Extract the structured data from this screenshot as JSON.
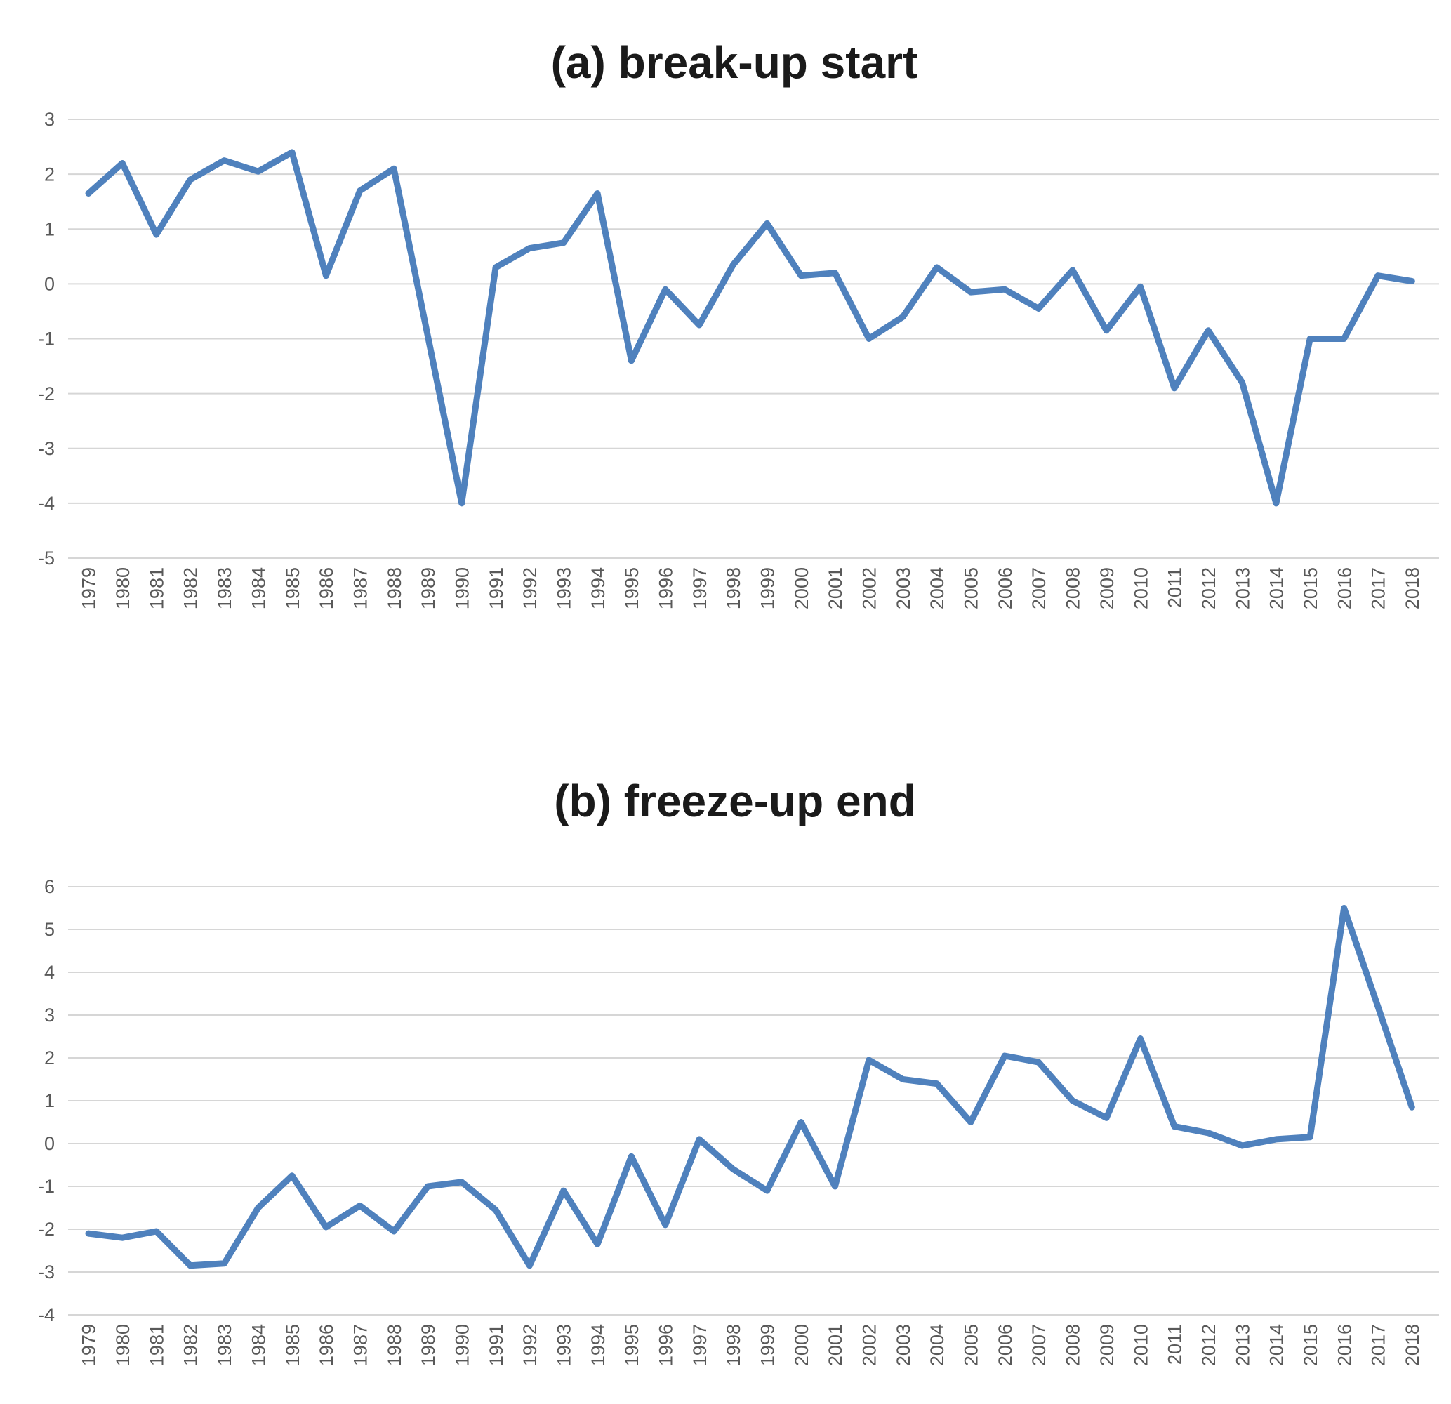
{
  "figure": {
    "background_color": "#ffffff",
    "title_color": "#1a1a1a",
    "tick_label_color": "#595959",
    "gridline_color": "#d6d6d6",
    "line_color": "#4f81bd"
  },
  "chart_data": [
    {
      "type": "line",
      "title": "(a) break-up start",
      "xlabel": "",
      "ylabel": "",
      "legend": "none",
      "grid": true,
      "ylim": [
        -5,
        3
      ],
      "yticks": [
        "3",
        "2",
        "1",
        "0",
        "-1",
        "-2",
        "-3",
        "-4",
        "-5"
      ],
      "categories": [
        "1979",
        "1980",
        "1981",
        "1982",
        "1983",
        "1984",
        "1985",
        "1986",
        "1987",
        "1988",
        "1989",
        "1990",
        "1991",
        "1992",
        "1993",
        "1994",
        "1995",
        "1996",
        "1997",
        "1998",
        "1999",
        "2000",
        "2001",
        "2002",
        "2003",
        "2004",
        "2005",
        "2006",
        "2007",
        "2008",
        "2009",
        "2010",
        "2011",
        "2012",
        "2013",
        "2014",
        "2015",
        "2016",
        "2017",
        "2018"
      ],
      "values": [
        1.65,
        2.2,
        0.9,
        1.9,
        2.25,
        2.05,
        2.4,
        0.15,
        1.7,
        2.1,
        -0.95,
        -4.0,
        0.3,
        0.65,
        0.75,
        1.65,
        -1.4,
        -0.1,
        -0.75,
        0.35,
        1.1,
        0.15,
        0.2,
        -1.0,
        -0.6,
        0.3,
        -0.15,
        -0.1,
        -0.45,
        0.25,
        -0.85,
        -0.05,
        -1.9,
        -0.85,
        -1.8,
        -4.0,
        -1.0,
        -1.0,
        0.15,
        0.05
      ]
    },
    {
      "type": "line",
      "title": "(b) freeze-up end",
      "xlabel": "",
      "ylabel": "",
      "legend": "none",
      "grid": true,
      "ylim": [
        -4,
        6
      ],
      "yticks": [
        "6",
        "5",
        "4",
        "3",
        "2",
        "1",
        "0",
        "-1",
        "-2",
        "-3",
        "-4"
      ],
      "categories": [
        "1979",
        "1980",
        "1981",
        "1982",
        "1983",
        "1984",
        "1985",
        "1986",
        "1987",
        "1988",
        "1989",
        "1990",
        "1991",
        "1992",
        "1993",
        "1994",
        "1995",
        "1996",
        "1997",
        "1998",
        "1999",
        "2000",
        "2001",
        "2002",
        "2003",
        "2004",
        "2005",
        "2006",
        "2007",
        "2008",
        "2009",
        "2010",
        "2011",
        "2012",
        "2013",
        "2014",
        "2015",
        "2016",
        "2017",
        "2018"
      ],
      "values": [
        -2.1,
        -2.2,
        -2.05,
        -2.85,
        -2.8,
        -1.5,
        -0.75,
        -1.95,
        -1.45,
        -2.05,
        -1.0,
        -0.9,
        -1.55,
        -2.85,
        -1.1,
        -2.35,
        -0.3,
        -1.9,
        0.1,
        -0.6,
        -1.1,
        0.5,
        -1.0,
        1.95,
        1.5,
        1.4,
        0.5,
        2.05,
        1.9,
        1.0,
        0.6,
        2.45,
        0.4,
        0.25,
        -0.05,
        0.1,
        0.15,
        5.5,
        3.2,
        0.85
      ]
    }
  ]
}
